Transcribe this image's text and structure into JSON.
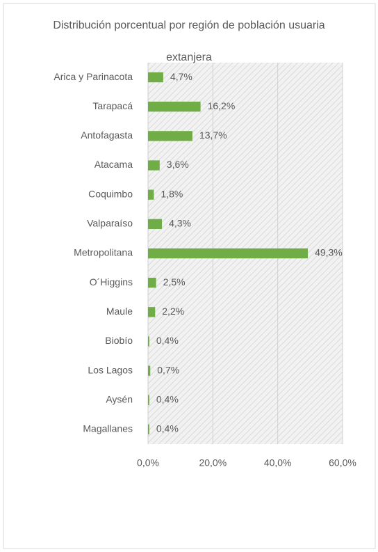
{
  "chart_data": {
    "type": "hbar",
    "title": "Distribución porcentual por región de población usuaria extanjera",
    "categories": [
      "Arica y Parinacota",
      "Tarapacá",
      "Antofagasta",
      "Atacama",
      "Coquimbo",
      "Valparaíso",
      "Metropolitana",
      "O´Higgins",
      "Maule",
      "Biobío",
      "Los Lagos",
      "Aysén",
      "Magallanes"
    ],
    "values": [
      4.7,
      16.2,
      13.7,
      3.6,
      1.8,
      4.3,
      49.3,
      2.5,
      2.2,
      0.4,
      0.7,
      0.4,
      0.4
    ],
    "value_labels": [
      "4,7%",
      "16,2%",
      "13,7%",
      "3,6%",
      "1,8%",
      "4,3%",
      "49,3%",
      "2,5%",
      "2,2%",
      "0,4%",
      "0,7%",
      "0,4%",
      "0,4%"
    ],
    "color": "#70ad47",
    "xlim": [
      0,
      60
    ],
    "xticks": [
      {
        "value": 0,
        "label": "0,0%"
      },
      {
        "value": 20,
        "label": "20,0%"
      },
      {
        "value": 40,
        "label": "40,0%"
      },
      {
        "value": 60,
        "label": "60,0%"
      }
    ],
    "grid": true
  }
}
